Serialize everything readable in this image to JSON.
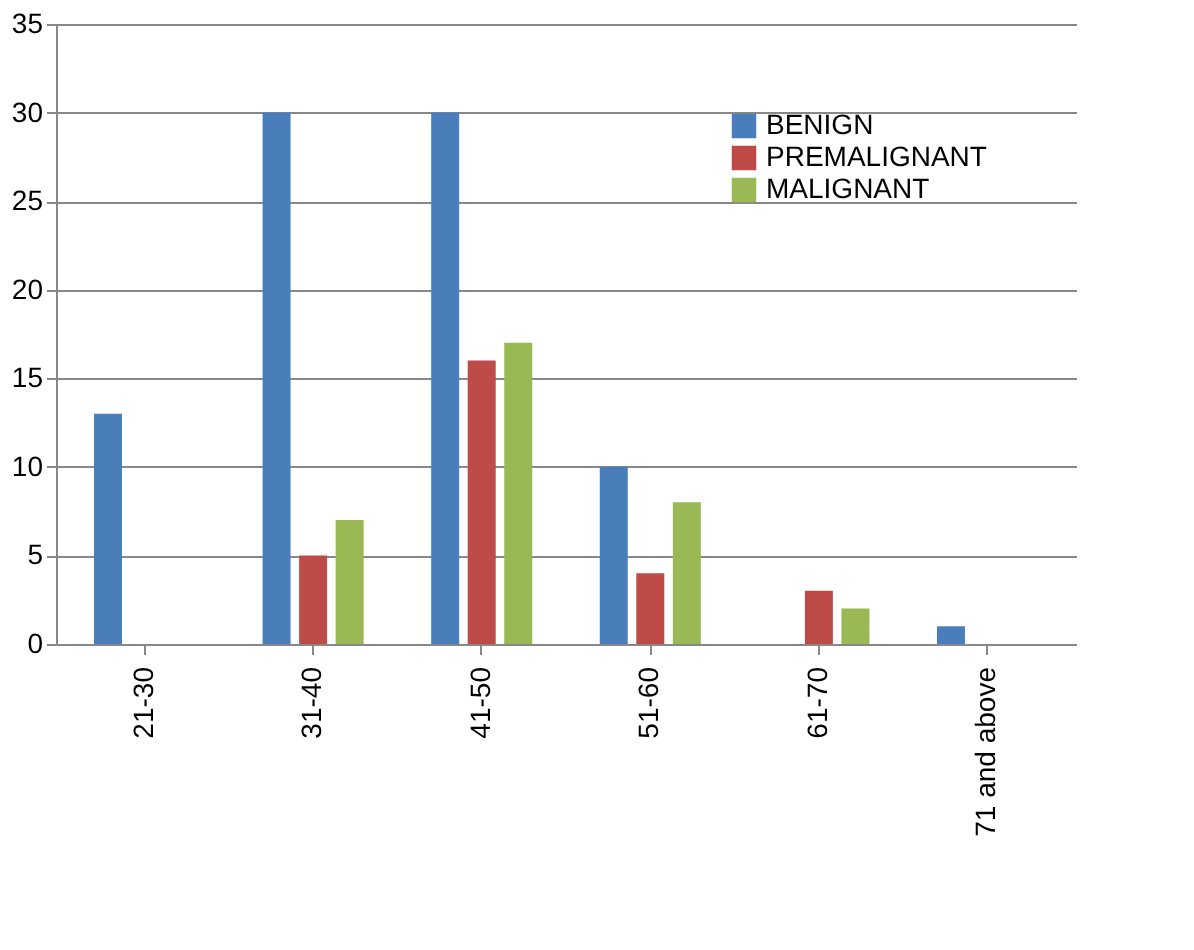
{
  "chart_data": {
    "type": "bar",
    "categories": [
      "21-30",
      "31-40",
      "41-50",
      "51-60",
      "61-70",
      "71 and above"
    ],
    "series": [
      {
        "name": "BENIGN",
        "color": "#4a7ebb",
        "values": [
          13,
          30,
          30,
          10,
          null,
          1
        ]
      },
      {
        "name": "PREMALIGNANT",
        "color": "#be4b48",
        "values": [
          null,
          5,
          16,
          4,
          3,
          null
        ]
      },
      {
        "name": "MALIGNANT",
        "color": "#98b954",
        "values": [
          null,
          7,
          17,
          8,
          2,
          null
        ]
      }
    ],
    "ylim": [
      0,
      35
    ],
    "yticks": [
      0,
      5,
      10,
      15,
      20,
      25,
      30,
      35
    ],
    "grid": "y",
    "legend": "top right"
  }
}
